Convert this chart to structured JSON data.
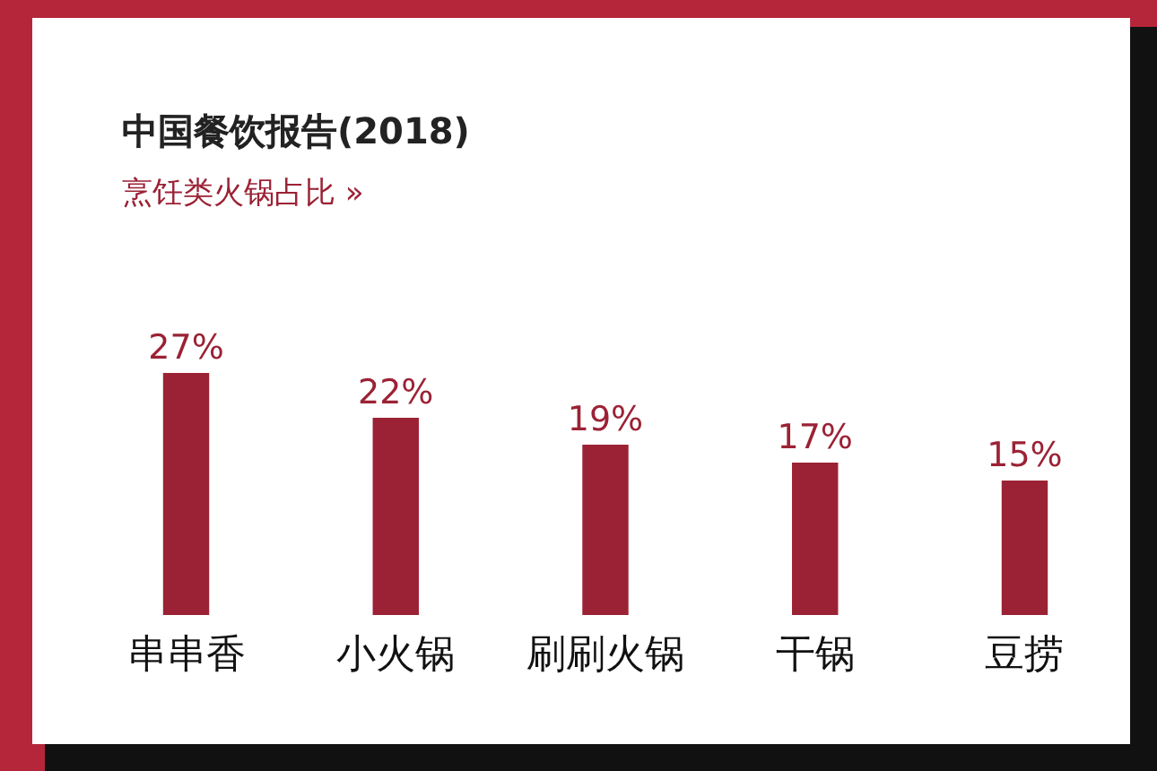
{
  "chart_data": {
    "type": "bar",
    "title": "中国餐饮报告(2018)",
    "subtitle": "烹饪类火锅占比 »",
    "categories": [
      "串串香",
      "小火锅",
      "刷刷火锅",
      "干锅",
      "豆捞"
    ],
    "values": [
      27,
      22,
      19,
      17,
      15
    ],
    "color": "#9b2235",
    "value_labels": [
      "27%",
      "22%",
      "19%",
      "17%",
      "15%"
    ]
  }
}
